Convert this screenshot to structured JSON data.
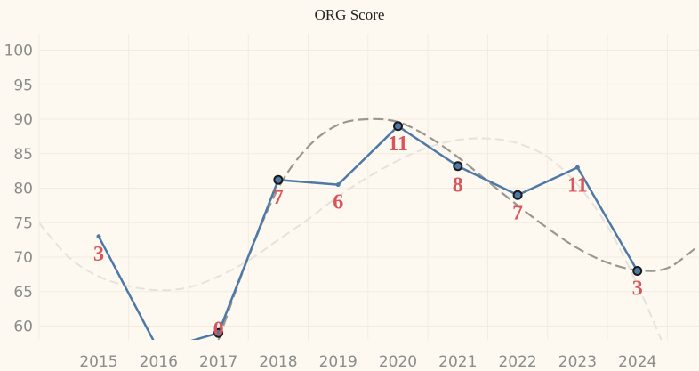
{
  "chart_data": {
    "type": "line",
    "title": "ORG Score",
    "xlabel": "",
    "ylabel": "",
    "categories": [
      "2015",
      "2016",
      "2017",
      "2018",
      "2019",
      "2020",
      "2021",
      "2022",
      "2023",
      "2024"
    ],
    "yticks": [
      60,
      65,
      70,
      75,
      80,
      85,
      90,
      95,
      100
    ],
    "ylim": [
      58,
      102
    ],
    "grid": true,
    "series": [
      {
        "values": [
          73,
          56.5,
          59,
          81.2,
          80.5,
          89,
          83.2,
          79,
          83,
          68
        ],
        "markers": [
          false,
          false,
          true,
          true,
          false,
          true,
          true,
          true,
          false,
          true
        ],
        "labels": [
          "3",
          "",
          "0",
          "7",
          "6",
          "11",
          "8",
          "7",
          "11",
          "3"
        ],
        "color": "#4e79a7"
      }
    ],
    "trend_curves": [
      {
        "style": "dashed",
        "color": "#9a9791",
        "x": [
          2017.0,
          2017.5,
          2018.0,
          2018.5,
          2019.0,
          2019.5,
          2020.0,
          2020.5,
          2021.0,
          2021.5,
          2022.0,
          2022.5,
          2023.0,
          2023.5,
          2024.0,
          2024.5,
          2025.0
        ],
        "y": [
          58,
          70,
          80,
          86,
          89.2,
          90,
          89.6,
          87.5,
          84.5,
          81,
          77.5,
          74.2,
          71.3,
          69.2,
          68.1,
          68.4,
          71.5
        ]
      },
      {
        "style": "dashed",
        "color": "#e6e2dc",
        "x": [
          2014.0,
          2014.5,
          2015.0,
          2015.5,
          2016.0,
          2016.5,
          2017.0,
          2017.5,
          2018.0,
          2018.5,
          2019.0,
          2019.5,
          2020.0,
          2020.5,
          2021.0,
          2021.5,
          2022.0,
          2022.5,
          2023.0,
          2023.5,
          2024.0,
          2024.4
        ],
        "y": [
          75,
          70,
          67.2,
          65.8,
          65.2,
          65.6,
          67.2,
          69.5,
          72.5,
          75.5,
          78.8,
          81.6,
          84,
          85.9,
          87,
          87.2,
          86.5,
          84.5,
          80.5,
          74.5,
          66,
          58
        ]
      }
    ],
    "colors": {
      "background": "#fdf9f1",
      "grid": "#f2ebe0",
      "line": "#4e79a7",
      "marker_edge": "#1a1a1a",
      "label": "#d9545a"
    }
  }
}
